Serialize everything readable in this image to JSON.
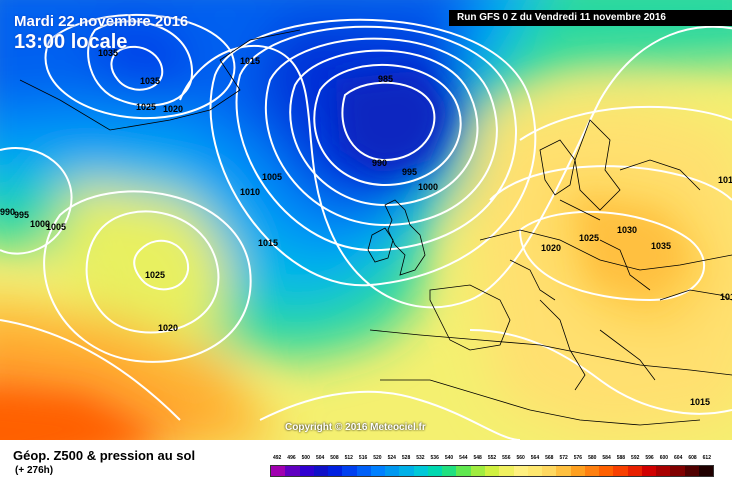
{
  "header": {
    "date": "Mardi 22 novembre 2016",
    "time": "13:00 locale",
    "run": "Run GFS 0 Z du Vendredi 11 novembre 2016"
  },
  "map": {
    "copyright": "Copyright © 2016 Meteociel.fr",
    "isobar_labels": [
      "1035",
      "1035",
      "1015",
      "1025",
      "1020",
      "985",
      "990",
      "995",
      "1000",
      "1005",
      "1010",
      "1015",
      "990",
      "995",
      "1000",
      "1005",
      "1025",
      "1020",
      "1020",
      "1025",
      "1030",
      "1035",
      "1015",
      "1015",
      "101"
    ]
  },
  "footer": {
    "title": "Géop. Z500 & pression au sol",
    "forecast_hour": "(+ 276h)"
  },
  "legend": {
    "values": [
      "492",
      "496",
      "500",
      "504",
      "508",
      "512",
      "516",
      "520",
      "524",
      "528",
      "532",
      "536",
      "540",
      "544",
      "548",
      "552",
      "556",
      "560",
      "564",
      "568",
      "572",
      "576",
      "580",
      "584",
      "588",
      "592",
      "596",
      "600",
      "604",
      "608",
      "612"
    ],
    "colors": [
      "#a000b0",
      "#6000c0",
      "#3000d0",
      "#1010c8",
      "#0020e0",
      "#0040f0",
      "#0060f8",
      "#0080ff",
      "#0098f0",
      "#00b0e8",
      "#00c8d8",
      "#00d8b0",
      "#20e080",
      "#60e850",
      "#a0ec40",
      "#d0f040",
      "#f0f060",
      "#fff080",
      "#ffe870",
      "#ffd860",
      "#ffc040",
      "#ffa020",
      "#ff8010",
      "#ff6000",
      "#f84000",
      "#e82000",
      "#d00000",
      "#a80000",
      "#800000",
      "#500000",
      "#200000"
    ]
  }
}
